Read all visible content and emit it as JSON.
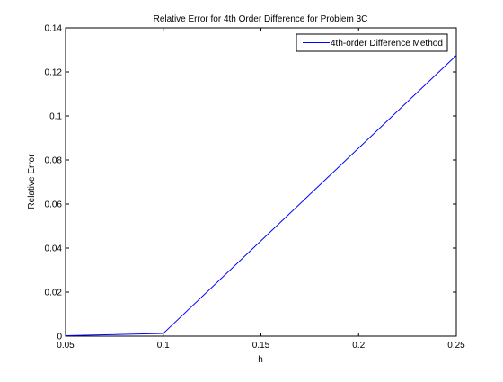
{
  "chart_data": {
    "type": "line",
    "title": "Relative Error for 4th Order Difference for Problem 3C",
    "xlabel": "h",
    "ylabel": "Relative Error",
    "xlim": [
      0.05,
      0.25
    ],
    "ylim": [
      0,
      0.14
    ],
    "xticks": [
      0.05,
      0.1,
      0.15,
      0.2,
      0.25
    ],
    "xtick_labels": [
      "0.05",
      "0.1",
      "0.15",
      "0.2",
      "0.25"
    ],
    "yticks": [
      0,
      0.02,
      0.04,
      0.06,
      0.08,
      0.1,
      0.12,
      0.14
    ],
    "ytick_labels": [
      "0",
      "0.02",
      "0.04",
      "0.06",
      "0.08",
      "0.1",
      "0.12",
      "0.14"
    ],
    "grid": false,
    "legend_position": "top-right",
    "series": [
      {
        "name": "4th-order Difference Method",
        "color": "#0000ff",
        "x": [
          0.05,
          0.1,
          0.25
        ],
        "y": [
          0.0002,
          0.0012,
          0.1275
        ]
      }
    ]
  }
}
